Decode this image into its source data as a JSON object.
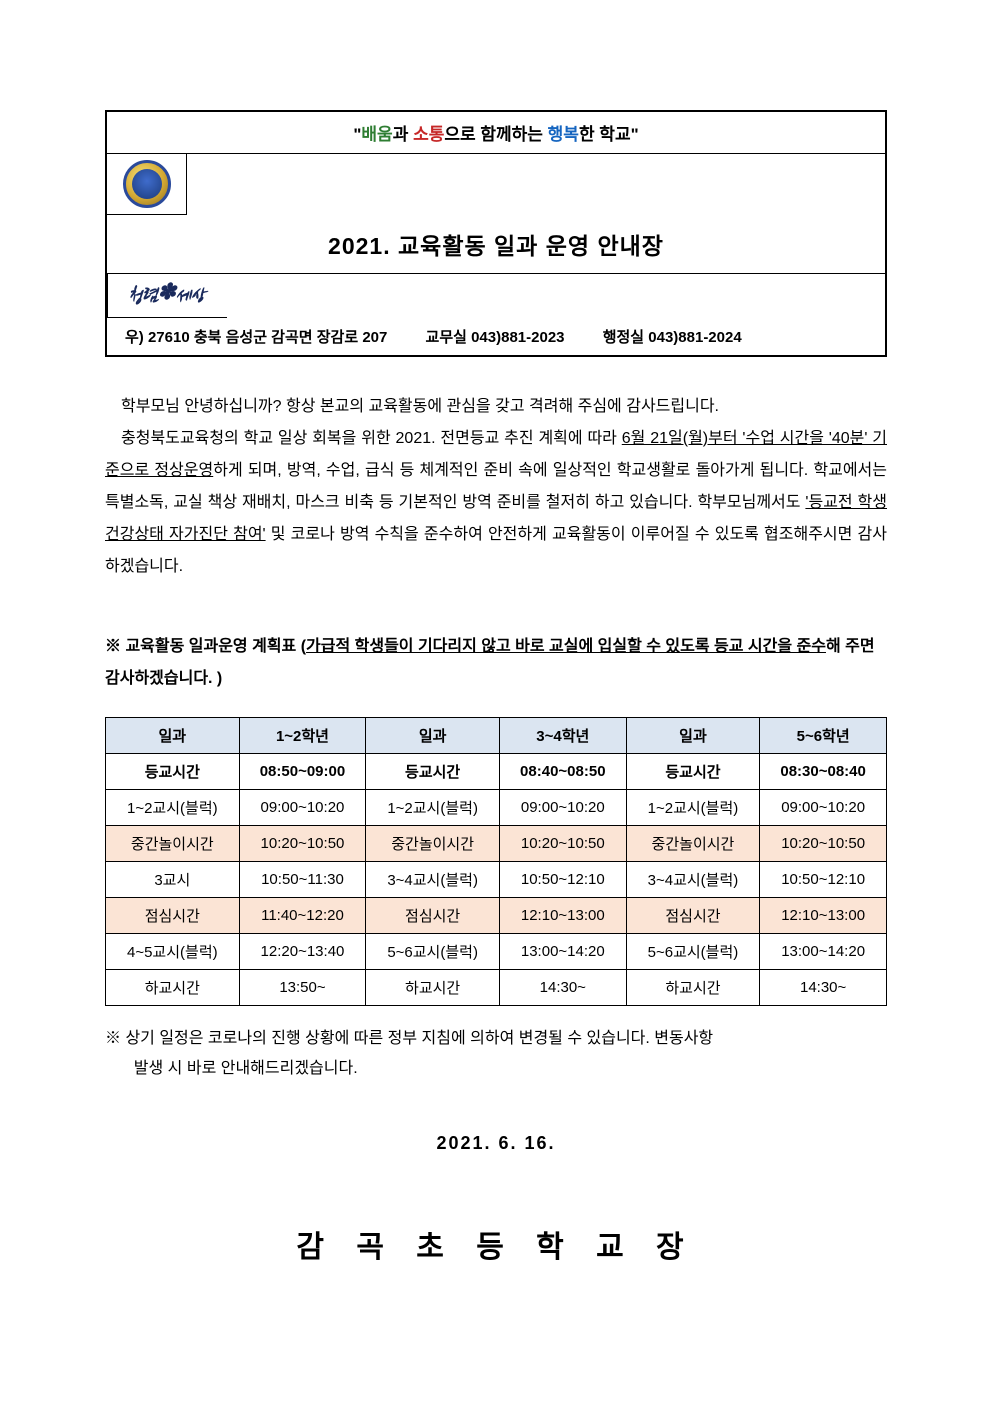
{
  "header": {
    "slogan_parts": {
      "quote_open": "\"",
      "w1": "배움",
      "t1": "과 ",
      "w2": "소통",
      "t2": "으로 함께하는 ",
      "w3": "행복",
      "t3": "한 학교\""
    },
    "title": "2021. 교육활동 일과 운영 안내장",
    "right_logo_text": "청렴✽세상",
    "contact": {
      "addr": "우) 27610  충북 음성군 감곡면 장감로 207",
      "office1_label": "교무실",
      "office1_num": "043)881-2023",
      "office2_label": "행정실",
      "office2_num": "043)881-2024"
    }
  },
  "body": {
    "p1": "학부모님 안녕하십니까? 항상 본교의 교육활동에 관심을 갖고 격려해 주심에 감사드립니다.",
    "p2a": "충청북도교육청의 학교 일상 회복을 위한 2021. 전면등교 추진 계획에 따라 ",
    "p2_ul1": "6월 21일(월)부터 '수업 시간을 '40분' 기준으로 정상운영",
    "p2b": "하게 되며, 방역, 수업, 급식 등 체계적인 준비 속에 일상적인 학교생활로 돌아가게 됩니다. 학교에서는 특별소독, 교실 책상 재배치, 마스크 비축 등 기본적인 방역 준비를 철저히 하고 있습니다. 학부모님께서도 ",
    "p2_ul2": "'등교전 학생 건강상태 자가진단 참여'",
    "p2c": " 및 코로나 방역 수칙을 준수하여 안전하게 교육활동이 이루어질 수 있도록 협조해주시면 감사하겠습니다."
  },
  "schedule_note": {
    "prefix": "※ 교육활동 일과운영 계획표 (",
    "ul_part": "가급적 학생들이 기다리지 않고 바로 교실에 입실할 수 있도록 등교 시간을 준수",
    "suffix": "해 주면 감사하겠습니다. )"
  },
  "schedule": {
    "header_bg": "#dbe5f1",
    "shade_bg": "#fbe4d5",
    "columns": [
      "일과",
      "1~2학년",
      "일과",
      "3~4학년",
      "일과",
      "5~6학년"
    ],
    "rows": [
      {
        "bold": true,
        "shade": false,
        "cells": [
          "등교시간",
          "08:50~09:00",
          "등교시간",
          "08:40~08:50",
          "등교시간",
          "08:30~08:40"
        ]
      },
      {
        "bold": false,
        "shade": false,
        "cells": [
          "1~2교시(블럭)",
          "09:00~10:20",
          "1~2교시(블럭)",
          "09:00~10:20",
          "1~2교시(블럭)",
          "09:00~10:20"
        ]
      },
      {
        "bold": false,
        "shade": true,
        "cells": [
          "중간놀이시간",
          "10:20~10:50",
          "중간놀이시간",
          "10:20~10:50",
          "중간놀이시간",
          "10:20~10:50"
        ]
      },
      {
        "bold": false,
        "shade": false,
        "cells": [
          "3교시",
          "10:50~11:30",
          "3~4교시(블럭)",
          "10:50~12:10",
          "3~4교시(블럭)",
          "10:50~12:10"
        ]
      },
      {
        "bold": false,
        "shade": true,
        "cells": [
          "점심시간",
          "11:40~12:20",
          "점심시간",
          "12:10~13:00",
          "점심시간",
          "12:10~13:00"
        ]
      },
      {
        "bold": false,
        "shade": false,
        "cells": [
          "4~5교시(블럭)",
          "12:20~13:40",
          "5~6교시(블럭)",
          "13:00~14:20",
          "5~6교시(블럭)",
          "13:00~14:20"
        ]
      },
      {
        "bold": false,
        "shade": false,
        "cells": [
          "하교시간",
          "13:50~",
          "하교시간",
          "14:30~",
          "하교시간",
          "14:30~"
        ]
      }
    ]
  },
  "footnote": {
    "line1": "※ 상기 일정은 코로나의 진행 상황에 따른 정부 지침에 의하여 변경될 수 있습니다. 변동사항",
    "line2": "발생 시 바로 안내해드리겠습니다."
  },
  "date": "2021.  6.  16.",
  "signature": "감 곡 초 등 학 교 장"
}
